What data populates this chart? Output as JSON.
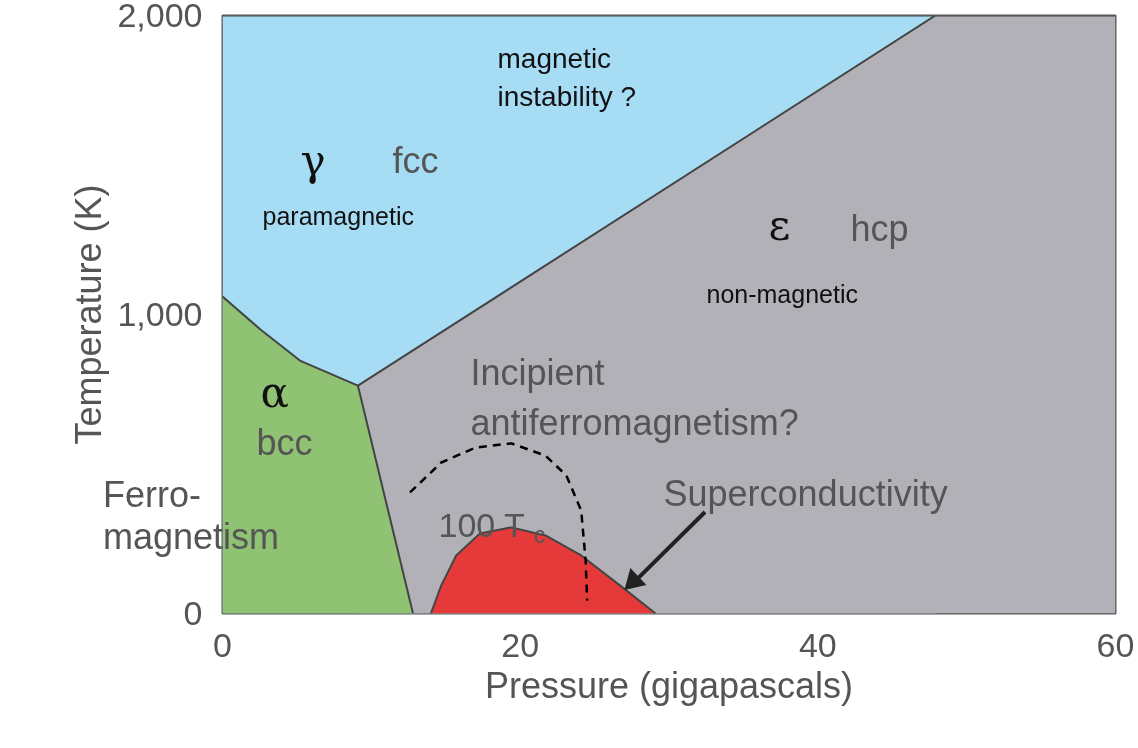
{
  "chart_data": {
    "type": "area",
    "xlabel": "Pressure (gigapascals)",
    "ylabel": "Temperature (K)",
    "xlim": [
      0,
      60
    ],
    "ylim": [
      0,
      2000
    ],
    "xticks": [
      0,
      20,
      40,
      60
    ],
    "yticks": [
      0,
      {
        "value": 1000,
        "label": "1,000"
      },
      {
        "value": 2000,
        "label": "2,000"
      }
    ],
    "grid": false,
    "series": [
      {
        "color": "#a6dcf4",
        "x": [
          0,
          47.9
        ],
        "values": [
          2000,
          2000
        ]
      },
      {
        "color": "#b3b1b8",
        "x": [
          9.1,
          47.9,
          60
        ],
        "values": [
          762,
          2000,
          2000
        ]
      },
      {
        "color": "#8fc273",
        "x": [
          0,
          2.55,
          5.2,
          9.1,
          12.8
        ],
        "values": [
          1060,
          950,
          846,
          762,
          0
        ]
      },
      {
        "color": "#e63a3a",
        "x": [
          14.0,
          14.7,
          15.7,
          17.3,
          19.4,
          21.7,
          24.1,
          26.7,
          29.1
        ],
        "values": [
          0,
          94,
          194,
          268,
          288,
          261,
          194,
          94,
          0
        ]
      },
      {
        "type": "line",
        "color": "#000000",
        "line_style": "dashed",
        "x": [
          12.6,
          14.7,
          17.0,
          19.4,
          21.7,
          23.1,
          24.1,
          24.4,
          24.5
        ],
        "values": [
          405,
          505,
          555,
          569,
          528,
          462,
          344,
          177,
          43
        ]
      }
    ],
    "annotations": [
      "magnetic\ninstability ?",
      "γ",
      "fcc",
      "paramagnetic",
      "ε",
      "hcp",
      "non-magnetic",
      "α",
      "bcc",
      "Ferro-\nmagnetism",
      "Incipient\nantiferromagnetism?",
      "100 T$_{c}$",
      {
        "text": "Superconductivity",
        "x": 26.7,
        "y": 94
      }
    ]
  }
}
